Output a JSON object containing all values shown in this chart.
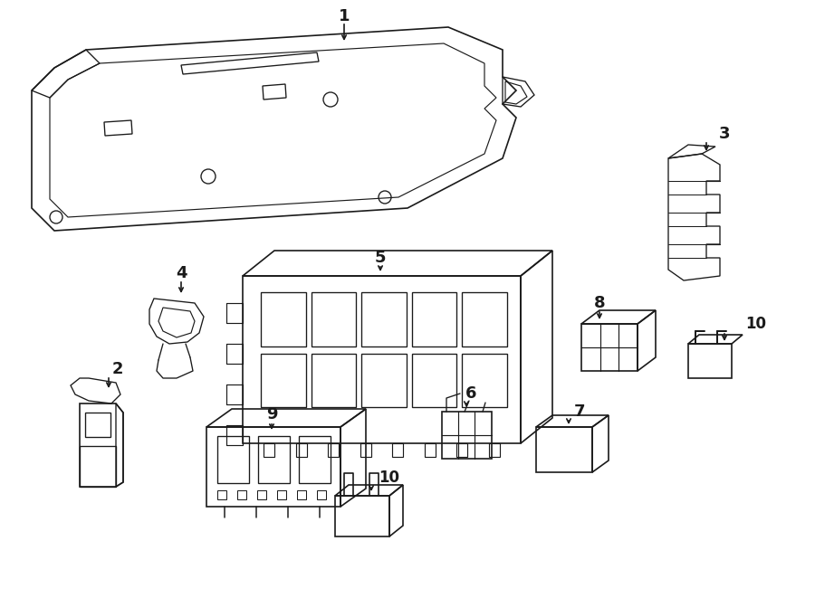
{
  "bg_color": "#ffffff",
  "line_color": "#1a1a1a",
  "line_width": 1.2,
  "fig_width": 9.0,
  "fig_height": 6.61,
  "dpi": 100
}
